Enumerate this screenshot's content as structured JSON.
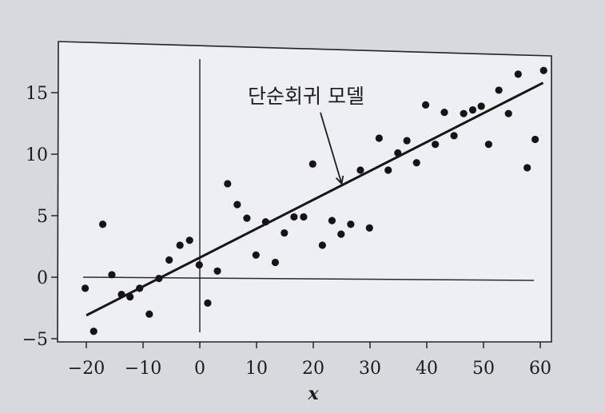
{
  "chart_data": {
    "type": "scatter",
    "x_ticks": [
      -20,
      -10,
      0,
      10,
      20,
      30,
      40,
      50,
      60
    ],
    "y_ticks": [
      -5,
      0,
      5,
      10,
      15
    ],
    "x_tick_labels": [
      "−20",
      "−10",
      "0",
      "10",
      "20",
      "30",
      "40",
      "50",
      "60"
    ],
    "y_tick_labels": [
      "−5",
      "0",
      "5",
      "10",
      "15"
    ],
    "xlabel": "x",
    "ylabel": "",
    "xlim": [
      -23,
      63
    ],
    "ylim": [
      -5.5,
      19
    ],
    "grid": false,
    "reference_lines": {
      "x": 0,
      "y": 0
    },
    "fit_line": {
      "x": [
        -20,
        60.5
      ],
      "y": [
        -3.1,
        15.8
      ]
    },
    "annotation": {
      "text": "단순회귀 모델",
      "target": [
        25,
        7.6
      ]
    },
    "points": [
      [
        -20.2,
        -0.9
      ],
      [
        -18.7,
        -4.4
      ],
      [
        -17.1,
        4.3
      ],
      [
        -15.5,
        0.2
      ],
      [
        -13.8,
        -1.4
      ],
      [
        -12.3,
        -1.6
      ],
      [
        -10.6,
        -0.9
      ],
      [
        -8.9,
        -3.0
      ],
      [
        -7.2,
        -0.1
      ],
      [
        -5.4,
        1.4
      ],
      [
        -3.5,
        2.6
      ],
      [
        -1.8,
        3.0
      ],
      [
        -0.1,
        1.0
      ],
      [
        1.4,
        -2.1
      ],
      [
        3.1,
        0.5
      ],
      [
        4.9,
        7.6
      ],
      [
        6.6,
        5.9
      ],
      [
        8.3,
        4.8
      ],
      [
        9.9,
        1.8
      ],
      [
        11.6,
        4.5
      ],
      [
        13.3,
        1.2
      ],
      [
        14.9,
        3.6
      ],
      [
        16.6,
        4.9
      ],
      [
        18.3,
        4.9
      ],
      [
        19.9,
        9.2
      ],
      [
        21.6,
        2.6
      ],
      [
        23.3,
        4.6
      ],
      [
        24.9,
        3.5
      ],
      [
        26.6,
        4.3
      ],
      [
        28.3,
        8.7
      ],
      [
        29.9,
        4.0
      ],
      [
        31.6,
        11.3
      ],
      [
        33.2,
        8.7
      ],
      [
        34.9,
        10.1
      ],
      [
        36.5,
        11.1
      ],
      [
        38.2,
        9.3
      ],
      [
        39.8,
        14.0
      ],
      [
        41.5,
        10.8
      ],
      [
        43.1,
        13.4
      ],
      [
        44.8,
        11.5
      ],
      [
        46.5,
        13.3
      ],
      [
        48.1,
        13.6
      ],
      [
        49.6,
        13.9
      ],
      [
        50.9,
        10.8
      ],
      [
        52.7,
        15.2
      ],
      [
        54.4,
        13.3
      ],
      [
        56.1,
        16.5
      ],
      [
        57.7,
        8.9
      ],
      [
        59.1,
        11.2
      ],
      [
        60.6,
        16.8
      ]
    ]
  }
}
